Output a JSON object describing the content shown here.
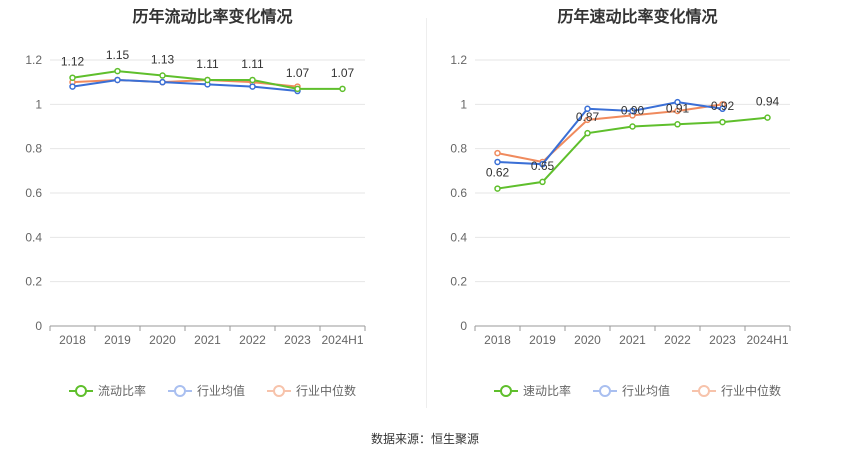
{
  "source": "数据来源：恒生聚源",
  "colors": {
    "primary": "#5fbf2c",
    "industry_avg": "#3a6fd6",
    "industry_median": "#f08a5d",
    "grid": "#e6e6e6",
    "axis": "#999999",
    "tick_text": "#666666",
    "label_text": "#333333"
  },
  "chart_data": [
    {
      "type": "line",
      "title": "历年流动比率变化情况",
      "categories": [
        "2018",
        "2019",
        "2020",
        "2021",
        "2022",
        "2023",
        "2024H1"
      ],
      "ylim": [
        0,
        1.2
      ],
      "yticks": [
        0,
        0.2,
        0.4,
        0.6,
        0.8,
        1,
        1.2
      ],
      "ytick_labels": [
        "0",
        "0.2",
        "0.4",
        "0.6",
        "0.8",
        "1",
        "1.2"
      ],
      "series": [
        {
          "name": "流动比率",
          "color": "#5fbf2c",
          "values": [
            1.12,
            1.15,
            1.13,
            1.11,
            1.11,
            1.07,
            1.07
          ],
          "labels": [
            "1.12",
            "1.15",
            "1.13",
            "1.11",
            "1.11",
            "1.07",
            "1.07"
          ]
        },
        {
          "name": "行业均值",
          "color": "#3a6fd6",
          "values": [
            1.08,
            1.11,
            1.1,
            1.09,
            1.08,
            1.06,
            null
          ]
        },
        {
          "name": "行业中位数",
          "color": "#f08a5d",
          "values": [
            1.1,
            1.11,
            1.1,
            1.11,
            1.1,
            1.08,
            null
          ]
        }
      ]
    },
    {
      "type": "line",
      "title": "历年速动比率变化情况",
      "categories": [
        "2018",
        "2019",
        "2020",
        "2021",
        "2022",
        "2023",
        "2024H1"
      ],
      "ylim": [
        0,
        1.2
      ],
      "yticks": [
        0,
        0.2,
        0.4,
        0.6,
        0.8,
        1,
        1.2
      ],
      "ytick_labels": [
        "0",
        "0.2",
        "0.4",
        "0.6",
        "0.8",
        "1",
        "1.2"
      ],
      "series": [
        {
          "name": "速动比率",
          "color": "#5fbf2c",
          "values": [
            0.62,
            0.65,
            0.87,
            0.9,
            0.91,
            0.92,
            0.94
          ],
          "labels": [
            "0.62",
            "0.65",
            "0.87",
            "0.90",
            "0.91",
            "0.92",
            "0.94"
          ]
        },
        {
          "name": "行业均值",
          "color": "#3a6fd6",
          "values": [
            0.74,
            0.73,
            0.98,
            0.97,
            1.01,
            0.98,
            null
          ]
        },
        {
          "name": "行业中位数",
          "color": "#f08a5d",
          "values": [
            0.78,
            0.74,
            0.93,
            0.95,
            0.97,
            1.0,
            null
          ]
        }
      ]
    }
  ]
}
